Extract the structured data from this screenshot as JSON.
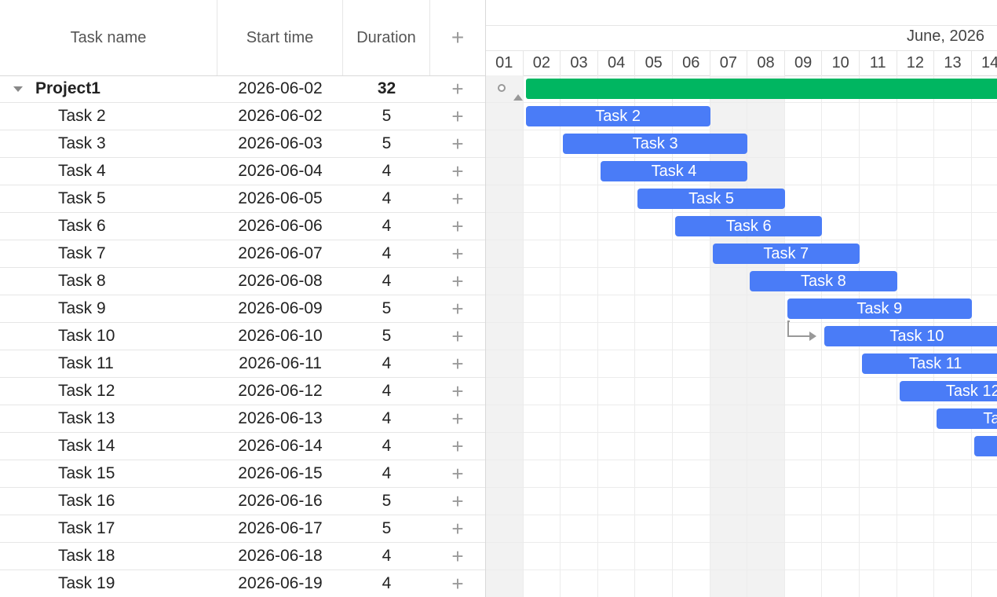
{
  "grid": {
    "columns": [
      {
        "key": "name",
        "label": "Task name"
      },
      {
        "key": "start",
        "label": "Start time"
      },
      {
        "key": "duration",
        "label": "Duration"
      },
      {
        "key": "add",
        "label": "+"
      }
    ],
    "add_symbol": "+",
    "rows": [
      {
        "name": "Project1",
        "start": "2026-06-02",
        "duration": "32",
        "type": "project",
        "expanded": true
      },
      {
        "name": "Task 2",
        "start": "2026-06-02",
        "duration": "5"
      },
      {
        "name": "Task 3",
        "start": "2026-06-03",
        "duration": "5"
      },
      {
        "name": "Task 4",
        "start": "2026-06-04",
        "duration": "4"
      },
      {
        "name": "Task 5",
        "start": "2026-06-05",
        "duration": "4"
      },
      {
        "name": "Task 6",
        "start": "2026-06-06",
        "duration": "4"
      },
      {
        "name": "Task 7",
        "start": "2026-06-07",
        "duration": "4"
      },
      {
        "name": "Task 8",
        "start": "2026-06-08",
        "duration": "4"
      },
      {
        "name": "Task 9",
        "start": "2026-06-09",
        "duration": "5"
      },
      {
        "name": "Task 10",
        "start": "2026-06-10",
        "duration": "5"
      },
      {
        "name": "Task 11",
        "start": "2026-06-11",
        "duration": "4"
      },
      {
        "name": "Task 12",
        "start": "2026-06-12",
        "duration": "4"
      },
      {
        "name": "Task 13",
        "start": "2026-06-13",
        "duration": "4"
      },
      {
        "name": "Task 14",
        "start": "2026-06-14",
        "duration": "4"
      },
      {
        "name": "Task 15",
        "start": "2026-06-15",
        "duration": "4"
      },
      {
        "name": "Task 16",
        "start": "2026-06-16",
        "duration": "5"
      },
      {
        "name": "Task 17",
        "start": "2026-06-17",
        "duration": "5"
      },
      {
        "name": "Task 18",
        "start": "2026-06-18",
        "duration": "4"
      },
      {
        "name": "Task 19",
        "start": "2026-06-19",
        "duration": "4"
      }
    ]
  },
  "timeline": {
    "month_label": "June, 2026",
    "days": [
      "01",
      "02",
      "03",
      "04",
      "05",
      "06",
      "07",
      "08",
      "09",
      "10",
      "11",
      "12",
      "13",
      "14"
    ],
    "weekend_days": [
      "01",
      "07",
      "08"
    ],
    "colors": {
      "task": "#4a7cf7",
      "project": "#00b661",
      "weekend": "#f2f2f2",
      "link": "#999999"
    }
  }
}
